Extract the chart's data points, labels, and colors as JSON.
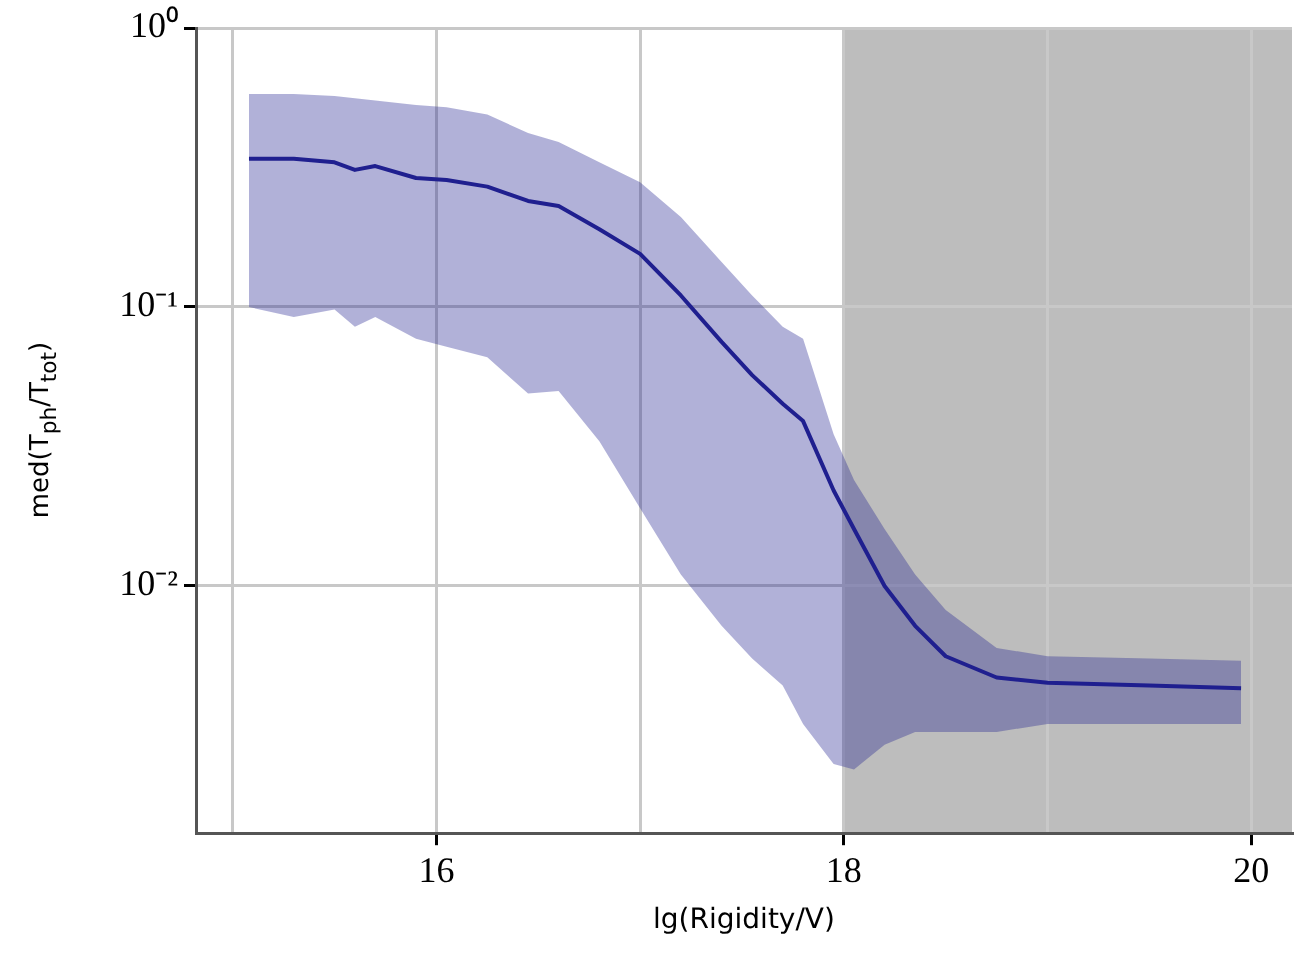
{
  "chart_data": {
    "type": "line",
    "xlabel": "lg(Rigidity/V)",
    "ylabel": "med(T$_{ph}$/T$_{tot}$)",
    "log": "y",
    "grid": true,
    "legend": false,
    "marker": "none",
    "line_style": "solid",
    "x": [
      15.08,
      15.3,
      15.5,
      15.6,
      15.7,
      15.9,
      16.05,
      16.25,
      16.45,
      16.6,
      16.8,
      17.0,
      17.2,
      17.4,
      17.55,
      17.7,
      17.8,
      17.95,
      18.05,
      18.2,
      18.35,
      18.5,
      18.75,
      19.0,
      19.5,
      19.95
    ],
    "series": [
      {
        "color": "#1f1f8f",
        "values": [
          0.34,
          0.34,
          0.33,
          0.31,
          0.32,
          0.29,
          0.285,
          0.27,
          0.24,
          0.23,
          0.19,
          0.155,
          0.11,
          0.075,
          0.057,
          0.045,
          0.039,
          0.022,
          0.016,
          0.01,
          0.0072,
          0.0056,
          0.0047,
          0.0045,
          0.0044,
          0.0043
        ],
        "upper": [
          0.58,
          0.58,
          0.57,
          0.56,
          0.55,
          0.53,
          0.52,
          0.49,
          0.42,
          0.39,
          0.33,
          0.28,
          0.21,
          0.145,
          0.11,
          0.085,
          0.077,
          0.035,
          0.024,
          0.016,
          0.011,
          0.0082,
          0.006,
          0.0056,
          0.0055,
          0.0054
        ],
        "lower": [
          0.1,
          0.092,
          0.098,
          0.085,
          0.092,
          0.077,
          0.072,
          0.066,
          0.049,
          0.05,
          0.033,
          0.019,
          0.011,
          0.0072,
          0.0055,
          0.0044,
          0.0032,
          0.0023,
          0.0022,
          0.0027,
          0.003,
          0.003,
          0.003,
          0.0032,
          0.0032,
          0.0032
        ]
      }
    ],
    "bands": [
      {
        "axis": "x",
        "from": 18,
        "to": 20.2,
        "color": "#bdbdbd"
      }
    ],
    "xlim": [
      14.82,
      20.2
    ],
    "xticks": [
      {
        "value": 15,
        "label": null
      },
      16,
      {
        "value": 17,
        "label": null
      },
      18,
      {
        "value": 19,
        "label": null
      },
      20
    ],
    "ylim": [
      0.0013,
      1
    ],
    "yticks": [
      {
        "value": 1,
        "label": "10⁰"
      },
      {
        "value": 0.1,
        "label": "10⁻¹"
      },
      {
        "value": 0.01,
        "label": "10⁻²"
      }
    ]
  }
}
